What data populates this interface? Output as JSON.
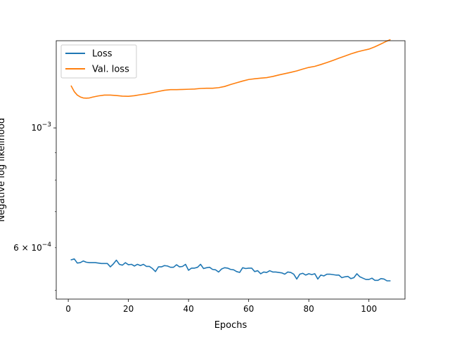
{
  "chart_data": {
    "type": "line",
    "xlabel": "Epochs",
    "ylabel": "Negative log likelihood",
    "yscale": "log",
    "xlim": [
      -4,
      112
    ],
    "ylim": [
      0.000482,
      0.00145
    ],
    "x_ticks": [
      {
        "value": 0,
        "label": "0"
      },
      {
        "value": 20,
        "label": "20"
      },
      {
        "value": 40,
        "label": "40"
      },
      {
        "value": 60,
        "label": "60"
      },
      {
        "value": 80,
        "label": "80"
      },
      {
        "value": 100,
        "label": "100"
      }
    ],
    "y_major_ticks": [
      {
        "value": 0.001,
        "base": "10",
        "exp": "−3"
      }
    ],
    "y_minor_ticks": [
      {
        "value": 0.0006,
        "mantissa": "6 × 10",
        "exp": "−4"
      },
      {
        "value": 0.0005
      },
      {
        "value": 0.0007
      },
      {
        "value": 0.0008
      },
      {
        "value": 0.0009
      }
    ],
    "legend": {
      "position": "upper-left"
    },
    "colors": {
      "loss": "#1f77b4",
      "val_loss": "#ff7f0e"
    },
    "series": [
      {
        "name": "Loss",
        "color": "#1f77b4",
        "x": [
          1,
          2,
          3,
          4,
          5,
          6,
          7,
          8,
          9,
          10,
          11,
          12,
          13,
          14,
          15,
          16,
          17,
          18,
          19,
          20,
          21,
          22,
          23,
          24,
          25,
          26,
          27,
          28,
          29,
          30,
          31,
          32,
          33,
          34,
          35,
          36,
          37,
          38,
          39,
          40,
          41,
          42,
          43,
          44,
          45,
          46,
          47,
          48,
          49,
          50,
          51,
          52,
          53,
          54,
          55,
          56,
          57,
          58,
          59,
          60,
          61,
          62,
          63,
          64,
          65,
          66,
          67,
          68,
          69,
          70,
          71,
          72,
          73,
          74,
          75,
          76,
          77,
          78,
          79,
          80,
          81,
          82,
          83,
          84,
          85,
          86,
          87,
          88,
          89,
          90,
          91,
          92,
          93,
          94,
          95,
          96,
          97,
          98,
          99,
          100,
          101,
          102,
          103,
          104,
          105,
          106,
          107
        ],
        "values": [
          0.00057,
          0.000572,
          0.000562,
          0.000563,
          0.000567,
          0.000564,
          0.000563,
          0.000563,
          0.000563,
          0.000562,
          0.000561,
          0.000561,
          0.000561,
          0.000553,
          0.00056,
          0.000569,
          0.000559,
          0.000557,
          0.000563,
          0.000558,
          0.000559,
          0.000555,
          0.000559,
          0.000556,
          0.000559,
          0.000554,
          0.000554,
          0.000549,
          0.000542,
          0.000553,
          0.000553,
          0.000556,
          0.000555,
          0.000552,
          0.000552,
          0.000558,
          0.000553,
          0.000554,
          0.000559,
          0.000545,
          0.00055,
          0.00055,
          0.000552,
          0.000559,
          0.000549,
          0.000551,
          0.000552,
          0.000547,
          0.000546,
          0.000541,
          0.000548,
          0.000551,
          0.00055,
          0.000547,
          0.000546,
          0.000542,
          0.00054,
          0.000551,
          0.000549,
          0.00055,
          0.00055,
          0.000542,
          0.000544,
          0.000537,
          0.000541,
          0.00054,
          0.000544,
          0.000541,
          0.000541,
          0.00054,
          0.000539,
          0.000536,
          0.000541,
          0.00054,
          0.000536,
          0.000525,
          0.000536,
          0.000538,
          0.000534,
          0.000537,
          0.000535,
          0.000537,
          0.000525,
          0.000534,
          0.000532,
          0.000536,
          0.000536,
          0.000535,
          0.000534,
          0.000534,
          0.000528,
          0.00053,
          0.000531,
          0.000526,
          0.000528,
          0.000537,
          0.00053,
          0.000527,
          0.000524,
          0.000524,
          0.000527,
          0.000522,
          0.000522,
          0.000526,
          0.000525,
          0.000521,
          0.000521
        ]
      },
      {
        "name": "Val. loss",
        "color": "#ff7f0e",
        "x": [
          1,
          2,
          3,
          4,
          5,
          6,
          7,
          8,
          9,
          10,
          12,
          14,
          16,
          18,
          20,
          22,
          24,
          26,
          28,
          30,
          32,
          34,
          36,
          38,
          40,
          42,
          44,
          46,
          48,
          50,
          52,
          54,
          56,
          58,
          60,
          62,
          64,
          66,
          68,
          70,
          72,
          74,
          76,
          78,
          80,
          82,
          84,
          86,
          88,
          90,
          92,
          94,
          96,
          98,
          100,
          102,
          104,
          106,
          107
        ],
        "values": [
          0.001195,
          0.001167,
          0.00115,
          0.001141,
          0.001136,
          0.001135,
          0.001136,
          0.00114,
          0.001143,
          0.001146,
          0.00115,
          0.00115,
          0.001148,
          0.001145,
          0.001144,
          0.001147,
          0.001152,
          0.001156,
          0.001162,
          0.001168,
          0.001174,
          0.001177,
          0.001177,
          0.001178,
          0.001179,
          0.00118,
          0.001183,
          0.001184,
          0.001184,
          0.001187,
          0.001193,
          0.001203,
          0.001212,
          0.001221,
          0.001229,
          0.001233,
          0.001236,
          0.001239,
          0.001245,
          0.001253,
          0.00126,
          0.001267,
          0.001275,
          0.001285,
          0.001294,
          0.0013,
          0.00131,
          0.001321,
          0.001333,
          0.001346,
          0.001358,
          0.001371,
          0.001382,
          0.001391,
          0.001399,
          0.001413,
          0.00143,
          0.001448,
          0.001456
        ]
      }
    ]
  }
}
